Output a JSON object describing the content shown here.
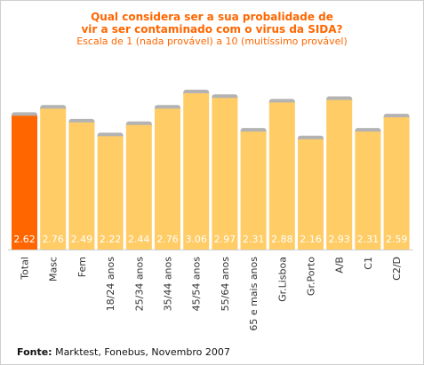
{
  "header": {
    "title_line1": "Qual considera ser a sua probalidade de",
    "title_line2": "vir a ser contaminado com o virus da SIDA?",
    "subtitle": "Escala de 1 (nada provável) a 10 (muitíssimo provável)"
  },
  "footer": {
    "source_label": "Fonte:",
    "source_text": " Marktest, Fonebus, Novembro 2007"
  },
  "colors": {
    "highlight": "#ff6600",
    "bar": "#ffcc66",
    "bar_cap": "#b3b3b3",
    "value_text": "#ffffff"
  },
  "chart_data": {
    "type": "bar",
    "title": "Qual considera ser a sua probalidade de vir a ser contaminado com o virus da SIDA?",
    "subtitle": "Escala de 1 (nada provável) a 10 (muitíssimo provável)",
    "categories": [
      "Total",
      "Masc",
      "Fem",
      "18/24 anos",
      "25/34 anos",
      "35/44 anos",
      "45/54 anos",
      "55/64 anos",
      "65 e mais anos",
      "Gr.Lisboa",
      "Gr.Porto",
      "A/B",
      "C1",
      "C2/D"
    ],
    "values": [
      2.62,
      2.76,
      2.49,
      2.22,
      2.44,
      2.76,
      3.06,
      2.97,
      2.31,
      2.88,
      2.16,
      2.93,
      2.31,
      2.59
    ],
    "value_labels": [
      "2.62",
      "2.76",
      "2.49",
      "2.22",
      "2.44",
      "2.76",
      "3.06",
      "2.97",
      "2.31",
      "2.88",
      "2.16",
      "2.93",
      "2.31",
      "2.59"
    ],
    "highlight_category": "Total",
    "xlabel": "",
    "ylabel": "",
    "ylim": [
      0,
      3.3
    ],
    "grid": false,
    "legend": false
  }
}
